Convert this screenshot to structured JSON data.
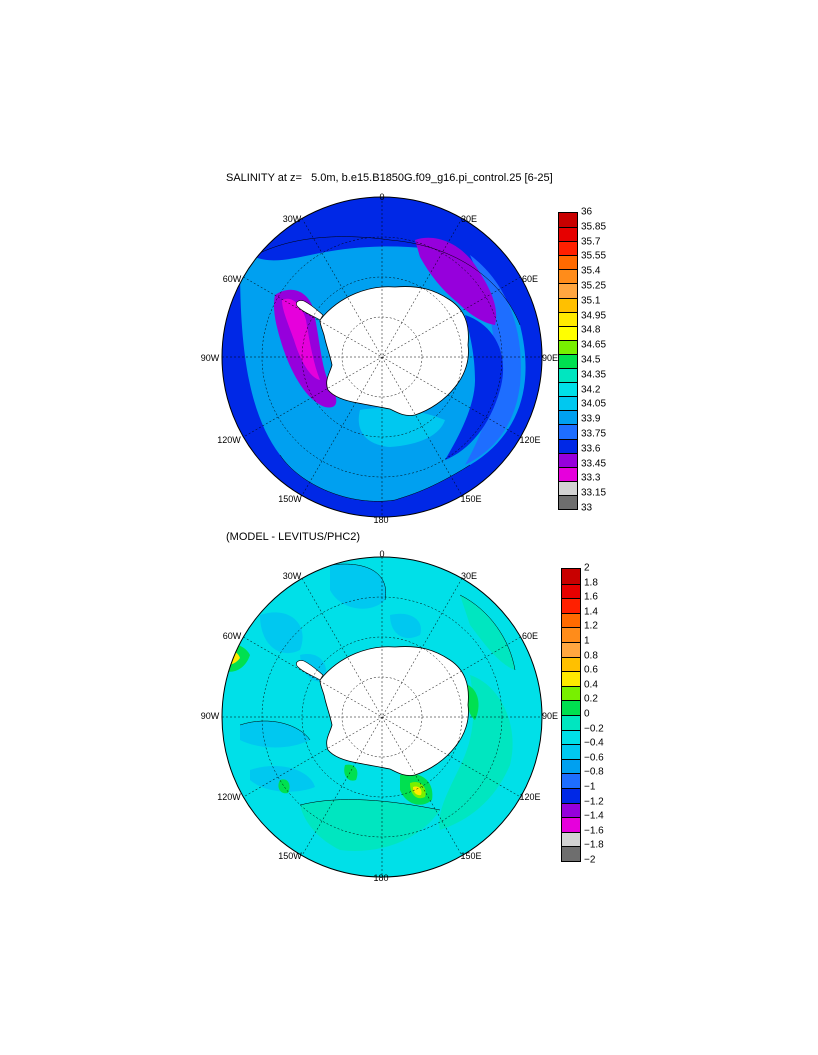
{
  "panel1": {
    "title": "SALINITY at z=   5.0m, b.e15.B1850G.f09_g16.pi_control.25 [6-25]",
    "lon_labels": [
      "0",
      "30E",
      "60E",
      "90E",
      "120E",
      "150E",
      "180",
      "150W",
      "120W",
      "90W",
      "60W",
      "30W"
    ],
    "colorbar_labels": [
      "36",
      "35.85",
      "35.7",
      "35.55",
      "35.4",
      "35.25",
      "35.1",
      "34.95",
      "34.8",
      "34.65",
      "34.5",
      "34.35",
      "34.2",
      "34.05",
      "33.9",
      "33.75",
      "33.6",
      "33.45",
      "33.3",
      "33.15",
      "33"
    ],
    "colorbar_colors": [
      "#c80000",
      "#e60000",
      "#ff2000",
      "#ff6a00",
      "#ff8c1a",
      "#ffa640",
      "#ffc000",
      "#ffea00",
      "#ffff00",
      "#78f000",
      "#00e050",
      "#00e6c0",
      "#00e0e8",
      "#00c8f0",
      "#00a0f0",
      "#1e6eff",
      "#0028e6",
      "#9600dc",
      "#e600dc",
      "#d2d2d2",
      "#6e6e6e"
    ]
  },
  "panel2": {
    "title": "(MODEL - LEVITUS/PHC2)",
    "lon_labels": [
      "0",
      "30E",
      "60E",
      "90E",
      "120E",
      "150E",
      "180",
      "150W",
      "120W",
      "90W",
      "60W",
      "30W"
    ],
    "colorbar_labels": [
      "2",
      "1.8",
      "1.6",
      "1.4",
      "1.2",
      "1",
      "0.8",
      "0.6",
      "0.4",
      "0.2",
      "0",
      "−0.2",
      "−0.4",
      "−0.6",
      "−0.8",
      "−1",
      "−1.2",
      "−1.4",
      "−1.6",
      "−1.8",
      "−2"
    ],
    "colorbar_colors": [
      "#c80000",
      "#e60000",
      "#ff2000",
      "#ff6a00",
      "#ff8c1a",
      "#ffa640",
      "#ffc000",
      "#ffea00",
      "#78f000",
      "#00e050",
      "#00e6c0",
      "#00e0e8",
      "#00c8f0",
      "#00a0f0",
      "#1e6eff",
      "#0028e6",
      "#9600dc",
      "#e600dc",
      "#d2d2d2",
      "#6e6e6e"
    ]
  }
}
